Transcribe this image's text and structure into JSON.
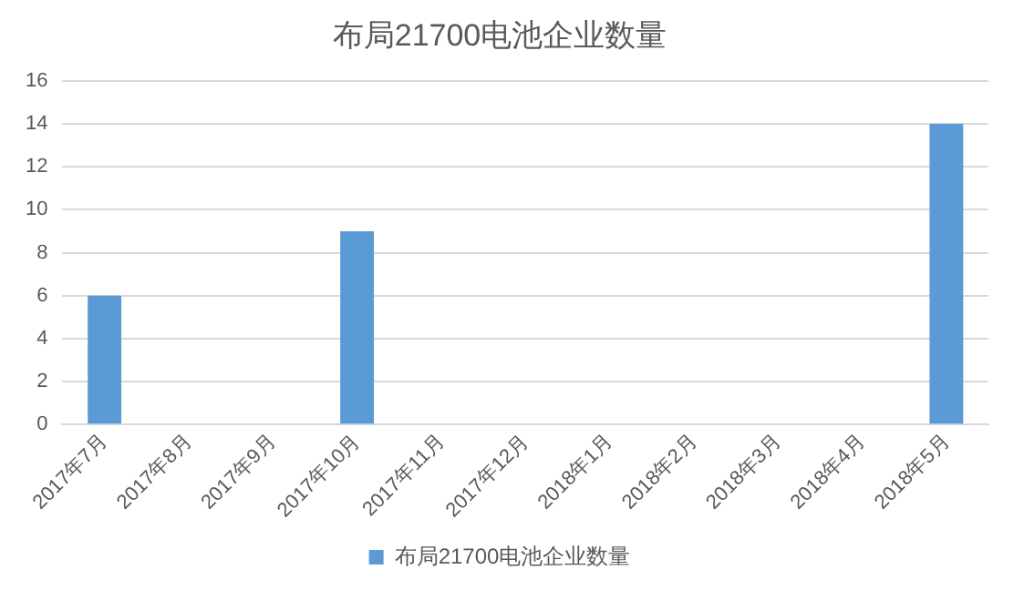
{
  "chart_data": {
    "type": "bar",
    "title": "布局21700电池企业数量",
    "categories": [
      "2017年7月",
      "2017年8月",
      "2017年9月",
      "2017年10月",
      "2017年11月",
      "2017年12月",
      "2018年1月",
      "2018年2月",
      "2018年3月",
      "2018年4月",
      "2018年5月"
    ],
    "series": [
      {
        "name": "布局21700电池企业数量",
        "color": "#5b9bd5",
        "values": [
          6,
          0,
          0,
          9,
          0,
          0,
          0,
          0,
          0,
          0,
          14
        ]
      }
    ],
    "ylim": [
      0,
      16
    ],
    "yticks": [
      0,
      2,
      4,
      6,
      8,
      10,
      12,
      14,
      16
    ],
    "grid": "y",
    "legend": "bottom"
  }
}
